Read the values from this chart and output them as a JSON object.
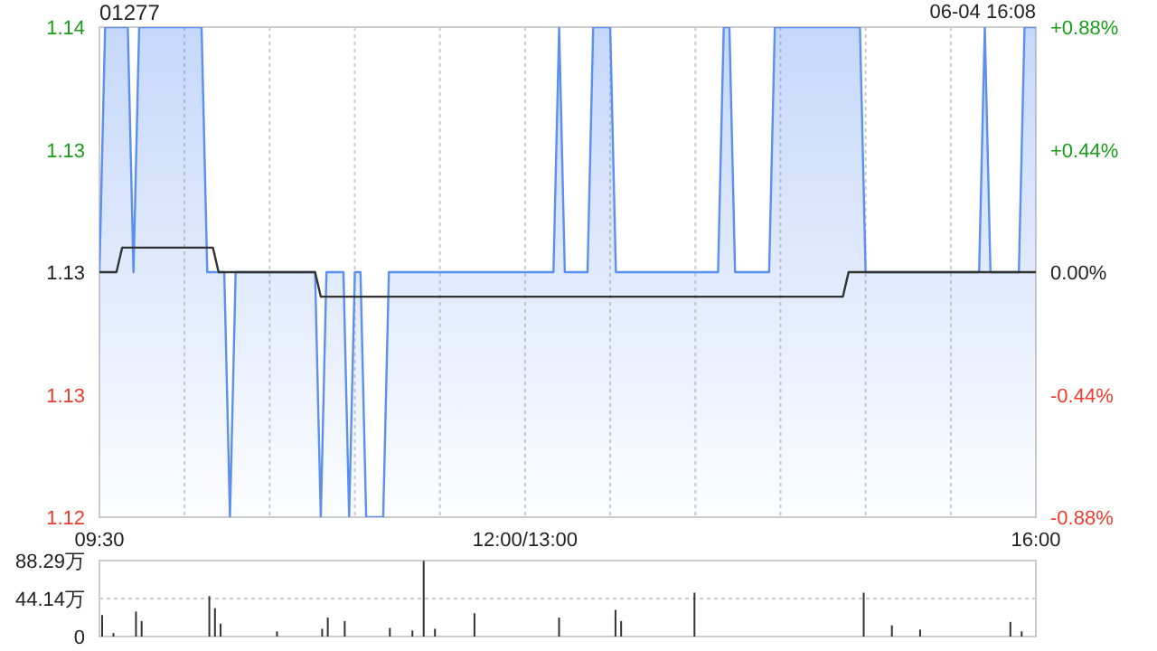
{
  "chart_data": [
    {
      "type": "area",
      "title": "01277",
      "annotations": [
        "06-04 16:08"
      ],
      "categories": [
        "09:30",
        null,
        null,
        null,
        null,
        null,
        null,
        null,
        null,
        null,
        null,
        null,
        null,
        null,
        null,
        null,
        null,
        null,
        null,
        null,
        null,
        null,
        null,
        null,
        null,
        null,
        null,
        null,
        null,
        null,
        null,
        null,
        null,
        null,
        null,
        null,
        null,
        null,
        null,
        null,
        null,
        null,
        null,
        null,
        null,
        null,
        null,
        null,
        null,
        null,
        null,
        null,
        null,
        null,
        null,
        null,
        null,
        null,
        null,
        null,
        null,
        null,
        null,
        null,
        null,
        null,
        null,
        null,
        null,
        null,
        null,
        null,
        null,
        null,
        null,
        "12:00/13:00",
        null,
        null,
        null,
        null,
        null,
        null,
        null,
        null,
        null,
        null,
        null,
        null,
        null,
        null,
        null,
        null,
        null,
        null,
        null,
        null,
        null,
        null,
        null,
        null,
        null,
        null,
        null,
        null,
        null,
        null,
        null,
        null,
        null,
        null,
        null,
        null,
        null,
        null,
        null,
        null,
        null,
        null,
        null,
        null,
        null,
        null,
        null,
        null,
        null,
        null,
        null,
        null,
        null,
        null,
        null,
        null,
        null,
        null,
        null,
        null,
        null,
        null,
        null,
        null,
        null,
        null,
        null,
        null,
        null,
        null,
        null,
        null,
        null,
        null,
        null,
        null,
        null,
        null,
        null,
        null,
        null,
        null,
        null,
        null,
        null,
        null,
        null,
        null,
        null,
        "16:00"
      ],
      "ylim": [
        1.12,
        1.14
      ],
      "yticks": [
        {
          "value": 1.12,
          "label": "1.12"
        },
        {
          "value": 1.125,
          "label": "1.13"
        },
        {
          "value": 1.13,
          "label": "1.13"
        },
        {
          "value": 1.135,
          "label": "1.13"
        },
        {
          "value": 1.14,
          "label": "1.14"
        }
      ],
      "y2lim": [
        -0.88,
        0.88
      ],
      "y2ticks": [
        {
          "value": -0.88,
          "label": "-0.88%"
        },
        {
          "value": -0.44,
          "label": "-0.44%"
        },
        {
          "value": 0,
          "label": "0.00%"
        },
        {
          "value": 0.44,
          "label": "+0.44%"
        },
        {
          "value": 0.88,
          "label": "+0.88%"
        }
      ],
      "grid": true,
      "marker": "none",
      "series": [
        {
          "type": "area",
          "color": "#5b8ff0",
          "values": [
            1.13,
            1.14,
            1.14,
            1.14,
            1.14,
            1.14,
            1.13,
            1.14,
            1.14,
            1.14,
            1.14,
            1.14,
            1.14,
            1.14,
            1.14,
            1.14,
            1.14,
            1.14,
            1.14,
            1.13,
            1.13,
            1.13,
            1.13,
            1.12,
            1.13,
            1.13,
            1.13,
            1.13,
            1.13,
            1.13,
            1.13,
            1.13,
            1.13,
            1.13,
            1.13,
            1.13,
            1.13,
            1.13,
            1.13,
            1.12,
            1.13,
            1.13,
            1.13,
            1.13,
            1.12,
            1.13,
            1.13,
            1.12,
            1.12,
            1.12,
            1.12,
            1.13,
            1.13,
            1.13,
            1.13,
            1.13,
            1.13,
            1.13,
            1.13,
            1.13,
            1.13,
            1.13,
            1.13,
            1.13,
            1.13,
            1.13,
            1.13,
            1.13,
            1.13,
            1.13,
            1.13,
            1.13,
            1.13,
            1.13,
            1.13,
            1.13,
            1.13,
            1.13,
            1.13,
            1.13,
            1.13,
            1.14,
            1.13,
            1.13,
            1.13,
            1.13,
            1.13,
            1.14,
            1.14,
            1.14,
            1.14,
            1.13,
            1.13,
            1.13,
            1.13,
            1.13,
            1.13,
            1.13,
            1.13,
            1.13,
            1.13,
            1.13,
            1.13,
            1.13,
            1.13,
            1.13,
            1.13,
            1.13,
            1.13,
            1.13,
            1.14,
            1.14,
            1.13,
            1.13,
            1.13,
            1.13,
            1.13,
            1.13,
            1.13,
            1.14,
            1.14,
            1.14,
            1.14,
            1.14,
            1.14,
            1.14,
            1.14,
            1.14,
            1.14,
            1.14,
            1.14,
            1.14,
            1.14,
            1.14,
            1.14,
            1.13,
            1.13,
            1.13,
            1.13,
            1.13,
            1.13,
            1.13,
            1.13,
            1.13,
            1.13,
            1.13,
            1.13,
            1.13,
            1.13,
            1.13,
            1.13,
            1.13,
            1.13,
            1.13,
            1.13,
            1.13,
            1.14,
            1.13,
            1.13,
            1.13,
            1.13,
            1.13,
            1.13,
            1.14,
            1.14,
            1.14
          ]
        },
        {
          "type": "line",
          "color": "#333333",
          "values": [
            1.13,
            1.13,
            1.13,
            1.13,
            1.131,
            1.131,
            1.131,
            1.131,
            1.131,
            1.131,
            1.131,
            1.131,
            1.131,
            1.131,
            1.131,
            1.131,
            1.131,
            1.131,
            1.131,
            1.131,
            1.131,
            1.13,
            1.13,
            1.13,
            1.13,
            1.13,
            1.13,
            1.13,
            1.13,
            1.13,
            1.13,
            1.13,
            1.13,
            1.13,
            1.13,
            1.13,
            1.13,
            1.13,
            1.13,
            1.129,
            1.129,
            1.129,
            1.129,
            1.129,
            1.129,
            1.129,
            1.129,
            1.129,
            1.129,
            1.129,
            1.129,
            1.129,
            1.129,
            1.129,
            1.129,
            1.129,
            1.129,
            1.129,
            1.129,
            1.129,
            1.129,
            1.129,
            1.129,
            1.129,
            1.129,
            1.129,
            1.129,
            1.129,
            1.129,
            1.129,
            1.129,
            1.129,
            1.129,
            1.129,
            1.129,
            1.129,
            1.129,
            1.129,
            1.129,
            1.129,
            1.129,
            1.129,
            1.129,
            1.129,
            1.129,
            1.129,
            1.129,
            1.129,
            1.129,
            1.129,
            1.129,
            1.129,
            1.129,
            1.129,
            1.129,
            1.129,
            1.129,
            1.129,
            1.129,
            1.129,
            1.129,
            1.129,
            1.129,
            1.129,
            1.129,
            1.129,
            1.129,
            1.129,
            1.129,
            1.129,
            1.129,
            1.129,
            1.129,
            1.129,
            1.129,
            1.129,
            1.129,
            1.129,
            1.129,
            1.129,
            1.129,
            1.129,
            1.129,
            1.129,
            1.129,
            1.129,
            1.129,
            1.129,
            1.129,
            1.129,
            1.129,
            1.129,
            1.13,
            1.13,
            1.13,
            1.13,
            1.13,
            1.13,
            1.13,
            1.13,
            1.13,
            1.13,
            1.13,
            1.13,
            1.13,
            1.13,
            1.13,
            1.13,
            1.13,
            1.13,
            1.13,
            1.13,
            1.13,
            1.13,
            1.13,
            1.13,
            1.13,
            1.13,
            1.13,
            1.13,
            1.13,
            1.13,
            1.13,
            1.13,
            1.13,
            1.13
          ]
        }
      ]
    },
    {
      "type": "bar",
      "color": "#333333",
      "ylim": [
        0,
        88.29
      ],
      "yticks": [
        0,
        {
          "value": 44.14,
          "label": "44.14万"
        },
        {
          "value": 88.29,
          "label": "88.29万"
        }
      ],
      "grid": "y",
      "tick_labels": "y",
      "categories": [
        null,
        null,
        null,
        null,
        null,
        null,
        null,
        null,
        null,
        null,
        null,
        null,
        null,
        null,
        null,
        null,
        null,
        null,
        null,
        null,
        null,
        null,
        null,
        null,
        null,
        null,
        null,
        null,
        null,
        null,
        null,
        null,
        null,
        null,
        null,
        null,
        null,
        null,
        null,
        null,
        null,
        null,
        null,
        null,
        null,
        null,
        null,
        null,
        null,
        null,
        null,
        null,
        null,
        null,
        null,
        null,
        null,
        null,
        null,
        null,
        null,
        null,
        null,
        null,
        null,
        null,
        null,
        null,
        null,
        null,
        null,
        null,
        null,
        null,
        null,
        null,
        null,
        null,
        null,
        null,
        null,
        null,
        null,
        null,
        null,
        null,
        null,
        null,
        null,
        null,
        null,
        null,
        null,
        null,
        null,
        null,
        null,
        null,
        null,
        null,
        null,
        null,
        null,
        null,
        null,
        null,
        null,
        null,
        null,
        null,
        null,
        null,
        null,
        null,
        null,
        null,
        null,
        null,
        null,
        null,
        null,
        null,
        null,
        null,
        null,
        null,
        null,
        null,
        null,
        null,
        null,
        null,
        null,
        null,
        null,
        null,
        null,
        null,
        null,
        null,
        null,
        null,
        null,
        null,
        null,
        null,
        null,
        null,
        null,
        null,
        null,
        null,
        null,
        null,
        null,
        null,
        null,
        null,
        null,
        null,
        null,
        null,
        null,
        null,
        null,
        null
      ],
      "values": [
        25,
        null,
        4,
        null,
        null,
        null,
        29,
        18,
        null,
        null,
        null,
        null,
        null,
        null,
        null,
        null,
        null,
        null,
        null,
        47,
        33,
        15,
        null,
        null,
        null,
        null,
        null,
        null,
        null,
        null,
        null,
        6,
        null,
        null,
        null,
        null,
        null,
        null,
        null,
        9,
        22,
        null,
        null,
        18,
        null,
        null,
        null,
        null,
        null,
        null,
        null,
        10,
        null,
        null,
        null,
        7,
        null,
        88,
        null,
        9,
        null,
        null,
        null,
        null,
        null,
        null,
        27,
        null,
        null,
        null,
        null,
        null,
        null,
        null,
        null,
        null,
        null,
        null,
        null,
        null,
        null,
        22,
        null,
        null,
        null,
        null,
        null,
        null,
        null,
        null,
        null,
        31,
        18,
        null,
        null,
        null,
        null,
        null,
        null,
        null,
        null,
        null,
        null,
        null,
        null,
        51,
        null,
        null,
        null,
        null,
        null,
        null,
        null,
        null,
        null,
        null,
        null,
        null,
        null,
        null,
        null,
        null,
        null,
        null,
        null,
        null,
        null,
        null,
        null,
        null,
        null,
        null,
        null,
        null,
        null,
        51,
        null,
        null,
        null,
        null,
        13,
        null,
        null,
        null,
        null,
        8,
        null,
        null,
        null,
        null,
        null,
        null,
        null,
        null,
        null,
        null,
        null,
        null,
        null,
        null,
        null,
        17,
        null,
        6,
        null,
        null
      ]
    }
  ]
}
